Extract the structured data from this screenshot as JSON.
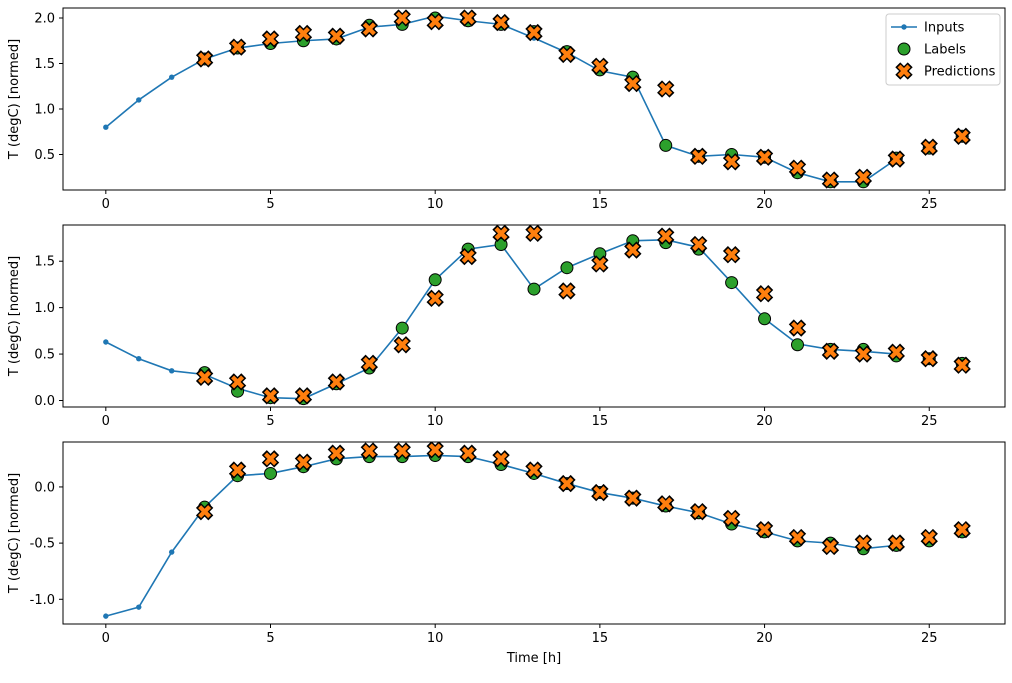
{
  "figure": {
    "background": "#ffffff"
  },
  "chart_data": {
    "type": "line",
    "title": "",
    "xlabel": "Time [h]",
    "xlim": [
      -1.3,
      27.3
    ],
    "xticks": [
      0,
      5,
      10,
      15,
      20,
      25
    ],
    "grid": false,
    "legend_position": "upper-right-first-subplot",
    "series_style": {
      "inputs": {
        "color": "#1f77b4",
        "marker": "dot",
        "line": true,
        "edge": null
      },
      "labels": {
        "color": "#2ca02c",
        "marker": "circle",
        "line": false,
        "edge": "#000000"
      },
      "predictions": {
        "color": "#ff7f0e",
        "marker": "X",
        "line": false,
        "edge": "#000000"
      }
    },
    "legend": [
      {
        "label": "Inputs",
        "series": "inputs"
      },
      {
        "label": "Labels",
        "series": "labels"
      },
      {
        "label": "Predictions",
        "series": "predictions"
      }
    ],
    "subplots": [
      {
        "ylabel": "T (degC) [normed]",
        "ylim": [
          0.11,
          2.11
        ],
        "yticks": [
          0.5,
          1.0,
          1.5,
          2.0
        ],
        "inputs": {
          "x": [
            0,
            1,
            2,
            3,
            4,
            5,
            6,
            7,
            8,
            9,
            10,
            11,
            12,
            13,
            14,
            15,
            16,
            17,
            18,
            19,
            20,
            21,
            22,
            23,
            24
          ],
          "y": [
            0.8,
            1.1,
            1.35,
            1.55,
            1.67,
            1.72,
            1.75,
            1.77,
            1.9,
            1.93,
            2.02,
            1.97,
            1.93,
            1.78,
            1.62,
            1.42,
            1.35,
            0.6,
            0.48,
            0.5,
            0.47,
            0.3,
            0.2,
            0.2,
            0.45
          ]
        },
        "labels": {
          "x": [
            3,
            4,
            5,
            6,
            7,
            8,
            9,
            10,
            11,
            12,
            13,
            14,
            15,
            16,
            17,
            18,
            19,
            20,
            21,
            22,
            23,
            24,
            25,
            26
          ],
          "y": [
            1.55,
            1.67,
            1.72,
            1.75,
            1.77,
            1.92,
            1.93,
            2.0,
            1.97,
            1.93,
            1.85,
            1.63,
            1.43,
            1.35,
            0.6,
            0.48,
            0.5,
            0.47,
            0.3,
            0.2,
            0.2,
            0.46,
            0.57,
            0.7
          ]
        },
        "predictions": {
          "x": [
            3,
            4,
            5,
            6,
            7,
            8,
            9,
            10,
            11,
            12,
            13,
            14,
            15,
            16,
            17,
            18,
            19,
            20,
            21,
            22,
            23,
            24,
            25,
            26
          ],
          "y": [
            1.55,
            1.68,
            1.77,
            1.83,
            1.8,
            1.88,
            2.0,
            1.96,
            2.0,
            1.95,
            1.84,
            1.6,
            1.47,
            1.28,
            1.22,
            0.48,
            0.42,
            0.47,
            0.35,
            0.22,
            0.25,
            0.45,
            0.58,
            0.7
          ]
        }
      },
      {
        "ylabel": "T (degC) [normed]",
        "ylim": [
          -0.07,
          1.89
        ],
        "yticks": [
          0.0,
          0.5,
          1.0,
          1.5
        ],
        "inputs": {
          "x": [
            0,
            1,
            2,
            3,
            4,
            5,
            6,
            7,
            8,
            9,
            10,
            11,
            12,
            13,
            14,
            15,
            16,
            17,
            18,
            19,
            20,
            21,
            22,
            23,
            24
          ],
          "y": [
            0.63,
            0.45,
            0.32,
            0.28,
            0.13,
            0.03,
            0.02,
            0.18,
            0.35,
            0.78,
            1.3,
            1.63,
            1.68,
            1.2,
            1.43,
            1.58,
            1.72,
            1.73,
            1.65,
            1.27,
            0.88,
            0.61,
            0.55,
            0.53,
            0.5
          ]
        },
        "labels": {
          "x": [
            3,
            4,
            5,
            6,
            7,
            8,
            9,
            10,
            11,
            12,
            13,
            14,
            15,
            16,
            17,
            18,
            19,
            20,
            21,
            22,
            23,
            24,
            25,
            26
          ],
          "y": [
            0.3,
            0.1,
            0.03,
            0.02,
            0.18,
            0.35,
            0.78,
            1.3,
            1.63,
            1.68,
            1.2,
            1.43,
            1.58,
            1.72,
            1.7,
            1.63,
            1.27,
            0.88,
            0.6,
            0.55,
            0.55,
            0.48,
            0.45,
            0.4
          ]
        },
        "predictions": {
          "x": [
            3,
            4,
            5,
            6,
            7,
            8,
            9,
            10,
            11,
            12,
            13,
            14,
            15,
            16,
            17,
            18,
            19,
            20,
            21,
            22,
            23,
            24,
            25,
            26
          ],
          "y": [
            0.25,
            0.2,
            0.05,
            0.05,
            0.2,
            0.4,
            0.6,
            1.1,
            1.55,
            1.8,
            1.8,
            1.18,
            1.47,
            1.62,
            1.77,
            1.68,
            1.57,
            1.15,
            0.78,
            0.53,
            0.5,
            0.52,
            0.45,
            0.38
          ]
        }
      },
      {
        "ylabel": "T (degC) [normed]",
        "ylim": [
          -1.22,
          0.4
        ],
        "yticks": [
          -1.0,
          -0.5,
          0.0
        ],
        "inputs": {
          "x": [
            0,
            1,
            2,
            3,
            4,
            5,
            6,
            7,
            8,
            9,
            10,
            11,
            12,
            13,
            14,
            15,
            16,
            17,
            18,
            19,
            20,
            21,
            22,
            23,
            24
          ],
          "y": [
            -1.15,
            -1.07,
            -0.58,
            -0.18,
            0.1,
            0.12,
            0.18,
            0.25,
            0.27,
            0.27,
            0.28,
            0.27,
            0.2,
            0.12,
            0.03,
            -0.05,
            -0.1,
            -0.17,
            -0.23,
            -0.33,
            -0.4,
            -0.48,
            -0.5,
            -0.55,
            -0.52
          ]
        },
        "labels": {
          "x": [
            3,
            4,
            5,
            6,
            7,
            8,
            9,
            10,
            11,
            12,
            13,
            14,
            15,
            16,
            17,
            18,
            19,
            20,
            21,
            22,
            23,
            24,
            25,
            26
          ],
          "y": [
            -0.18,
            0.1,
            0.12,
            0.18,
            0.25,
            0.27,
            0.27,
            0.28,
            0.27,
            0.2,
            0.12,
            0.03,
            -0.05,
            -0.1,
            -0.17,
            -0.23,
            -0.33,
            -0.4,
            -0.48,
            -0.5,
            -0.55,
            -0.52,
            -0.48,
            -0.4
          ]
        },
        "predictions": {
          "x": [
            3,
            4,
            5,
            6,
            7,
            8,
            9,
            10,
            11,
            12,
            13,
            14,
            15,
            16,
            17,
            18,
            19,
            20,
            21,
            22,
            23,
            24,
            25,
            26
          ],
          "y": [
            -0.22,
            0.15,
            0.25,
            0.22,
            0.3,
            0.32,
            0.32,
            0.33,
            0.3,
            0.25,
            0.15,
            0.03,
            -0.05,
            -0.1,
            -0.15,
            -0.22,
            -0.28,
            -0.38,
            -0.45,
            -0.53,
            -0.5,
            -0.5,
            -0.45,
            -0.38
          ]
        }
      }
    ]
  }
}
